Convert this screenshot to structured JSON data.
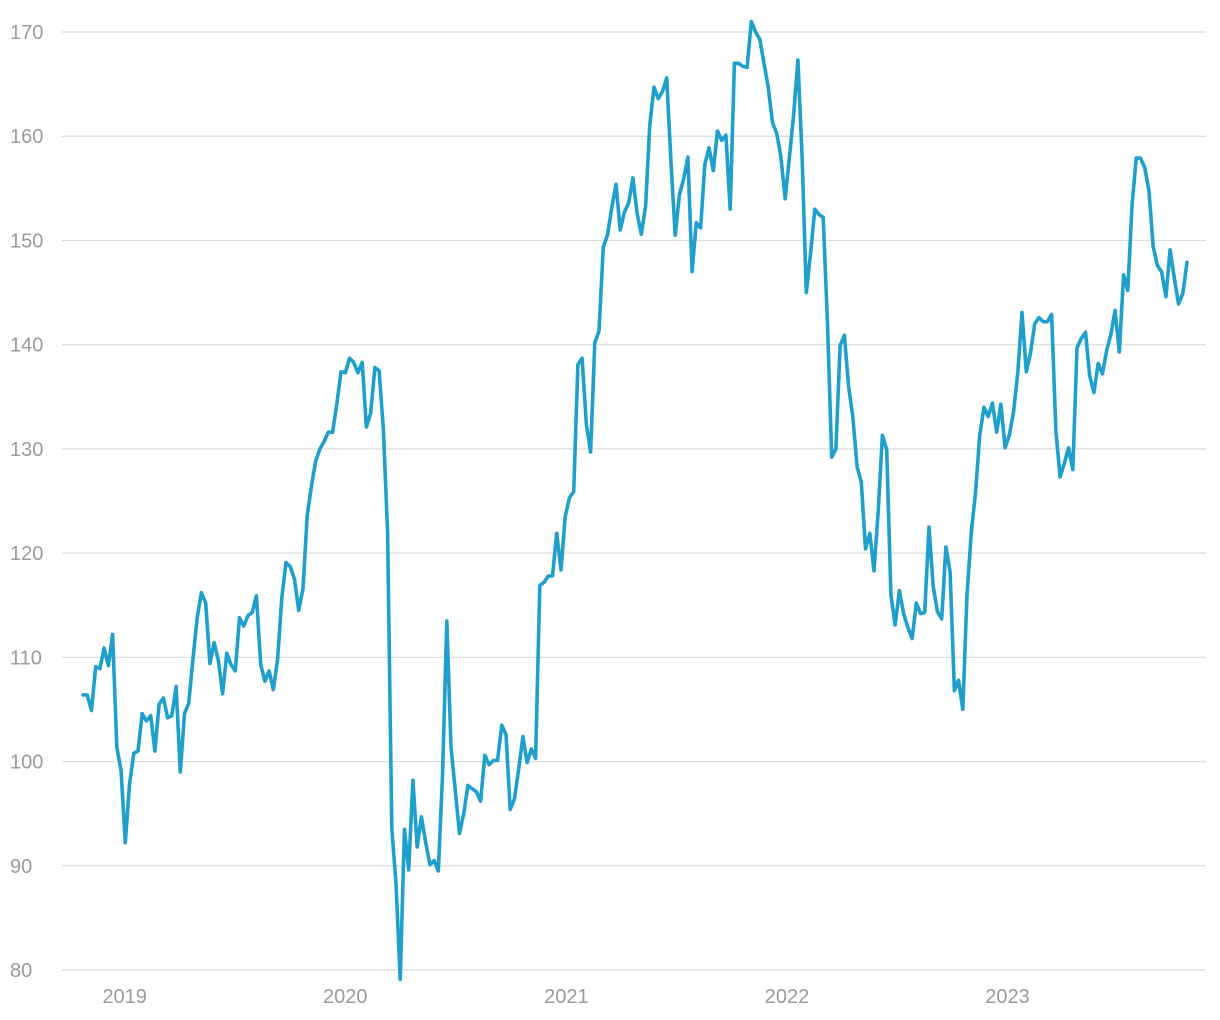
{
  "chart_data": {
    "type": "line",
    "title": "",
    "xlabel": "",
    "ylabel": "",
    "grid": true,
    "x_domain": [
      "2018-10-24",
      "2023-10-25"
    ],
    "ylim": [
      80,
      170
    ],
    "y_ticks": [
      170,
      160,
      150,
      140,
      130,
      120,
      110,
      100,
      90,
      80
    ],
    "x_ticks": [
      {
        "date": "2019-01-01",
        "label": "2019"
      },
      {
        "date": "2020-01-01",
        "label": "2020"
      },
      {
        "date": "2021-01-01",
        "label": "2021"
      },
      {
        "date": "2022-01-01",
        "label": "2022"
      },
      {
        "date": "2023-01-01",
        "label": "2023"
      }
    ],
    "line_color": "#1f9fcb",
    "grid_color": "#dcdcdc",
    "label_color": "#9a9a9a",
    "series": [
      {
        "points": [
          [
            "2018-10-24",
            106.4
          ],
          [
            "2018-10-31",
            106.4
          ],
          [
            "2018-11-07",
            104.9
          ],
          [
            "2018-11-14",
            109.1
          ],
          [
            "2018-11-21",
            108.9
          ],
          [
            "2018-11-28",
            110.9
          ],
          [
            "2018-12-05",
            109.2
          ],
          [
            "2018-12-12",
            112.2
          ],
          [
            "2018-12-19",
            101.4
          ],
          [
            "2018-12-26",
            99.1
          ],
          [
            "2019-01-02",
            92.2
          ],
          [
            "2019-01-09",
            97.8
          ],
          [
            "2019-01-16",
            100.8
          ],
          [
            "2019-01-23",
            101.0
          ],
          [
            "2019-01-30",
            104.6
          ],
          [
            "2019-02-06",
            103.9
          ],
          [
            "2019-02-13",
            104.4
          ],
          [
            "2019-02-20",
            101.0
          ],
          [
            "2019-02-27",
            105.5
          ],
          [
            "2019-03-06",
            106.1
          ],
          [
            "2019-03-13",
            104.2
          ],
          [
            "2019-03-20",
            104.4
          ],
          [
            "2019-03-27",
            107.2
          ],
          [
            "2019-04-03",
            99.0
          ],
          [
            "2019-04-10",
            104.6
          ],
          [
            "2019-04-17",
            105.6
          ],
          [
            "2019-04-24",
            109.9
          ],
          [
            "2019-05-01",
            113.8
          ],
          [
            "2019-05-08",
            116.2
          ],
          [
            "2019-05-15",
            115.2
          ],
          [
            "2019-05-22",
            109.4
          ],
          [
            "2019-05-29",
            111.4
          ],
          [
            "2019-06-05",
            109.7
          ],
          [
            "2019-06-12",
            106.5
          ],
          [
            "2019-06-19",
            110.4
          ],
          [
            "2019-06-26",
            109.3
          ],
          [
            "2019-07-03",
            108.7
          ],
          [
            "2019-07-10",
            113.8
          ],
          [
            "2019-07-17",
            113.0
          ],
          [
            "2019-07-24",
            114.0
          ],
          [
            "2019-07-31",
            114.3
          ],
          [
            "2019-08-07",
            115.9
          ],
          [
            "2019-08-14",
            109.3
          ],
          [
            "2019-08-21",
            107.7
          ],
          [
            "2019-08-28",
            108.7
          ],
          [
            "2019-09-04",
            106.9
          ],
          [
            "2019-09-11",
            109.8
          ],
          [
            "2019-09-18",
            115.7
          ],
          [
            "2019-09-25",
            119.1
          ],
          [
            "2019-10-02",
            118.7
          ],
          [
            "2019-10-09",
            117.5
          ],
          [
            "2019-10-16",
            114.5
          ],
          [
            "2019-10-23",
            116.6
          ],
          [
            "2019-10-30",
            123.6
          ],
          [
            "2019-11-06",
            126.4
          ],
          [
            "2019-11-13",
            128.8
          ],
          [
            "2019-11-20",
            130.0
          ],
          [
            "2019-11-27",
            130.7
          ],
          [
            "2019-12-04",
            131.6
          ],
          [
            "2019-12-11",
            131.6
          ],
          [
            "2019-12-18",
            134.3
          ],
          [
            "2019-12-25",
            137.4
          ],
          [
            "2020-01-01",
            137.3
          ],
          [
            "2020-01-08",
            138.7
          ],
          [
            "2020-01-15",
            138.3
          ],
          [
            "2020-01-22",
            137.3
          ],
          [
            "2020-01-29",
            138.3
          ],
          [
            "2020-02-05",
            132.1
          ],
          [
            "2020-02-12",
            133.4
          ],
          [
            "2020-02-19",
            137.8
          ],
          [
            "2020-02-26",
            137.5
          ],
          [
            "2020-03-04",
            132.0
          ],
          [
            "2020-03-11",
            122.0
          ],
          [
            "2020-03-18",
            93.6
          ],
          [
            "2020-03-25",
            88.3
          ],
          [
            "2020-04-01",
            79.1
          ],
          [
            "2020-04-08",
            93.5
          ],
          [
            "2020-04-15",
            89.6
          ],
          [
            "2020-04-22",
            98.2
          ],
          [
            "2020-04-29",
            91.8
          ],
          [
            "2020-05-06",
            94.7
          ],
          [
            "2020-05-13",
            92.3
          ],
          [
            "2020-05-20",
            90.1
          ],
          [
            "2020-05-27",
            90.5
          ],
          [
            "2020-06-03",
            89.5
          ],
          [
            "2020-06-10",
            98.6
          ],
          [
            "2020-06-17",
            113.5
          ],
          [
            "2020-06-24",
            101.4
          ],
          [
            "2020-07-01",
            97.3
          ],
          [
            "2020-07-08",
            93.1
          ],
          [
            "2020-07-15",
            95.0
          ],
          [
            "2020-07-22",
            97.7
          ],
          [
            "2020-07-29",
            97.4
          ],
          [
            "2020-08-05",
            97.1
          ],
          [
            "2020-08-12",
            96.2
          ],
          [
            "2020-08-19",
            100.6
          ],
          [
            "2020-08-26",
            99.7
          ],
          [
            "2020-09-02",
            100.1
          ],
          [
            "2020-09-09",
            100.1
          ],
          [
            "2020-09-16",
            103.5
          ],
          [
            "2020-09-23",
            102.6
          ],
          [
            "2020-09-30",
            95.4
          ],
          [
            "2020-10-07",
            96.4
          ],
          [
            "2020-10-14",
            99.3
          ],
          [
            "2020-10-21",
            102.4
          ],
          [
            "2020-10-28",
            99.9
          ],
          [
            "2020-11-04",
            101.2
          ],
          [
            "2020-11-11",
            100.3
          ],
          [
            "2020-11-18",
            116.9
          ],
          [
            "2020-11-25",
            117.2
          ],
          [
            "2020-12-02",
            117.8
          ],
          [
            "2020-12-09",
            117.8
          ],
          [
            "2020-12-16",
            121.9
          ],
          [
            "2020-12-23",
            118.4
          ],
          [
            "2020-12-30",
            123.5
          ],
          [
            "2021-01-06",
            125.3
          ],
          [
            "2021-01-13",
            125.9
          ],
          [
            "2021-01-20",
            138.1
          ],
          [
            "2021-01-27",
            138.7
          ],
          [
            "2021-02-03",
            132.3
          ],
          [
            "2021-02-10",
            129.7
          ],
          [
            "2021-02-17",
            140.2
          ],
          [
            "2021-02-24",
            141.3
          ],
          [
            "2021-03-03",
            149.4
          ],
          [
            "2021-03-10",
            150.5
          ],
          [
            "2021-03-17",
            153.1
          ],
          [
            "2021-03-24",
            155.4
          ],
          [
            "2021-03-31",
            151.0
          ],
          [
            "2021-04-07",
            152.7
          ],
          [
            "2021-04-14",
            153.6
          ],
          [
            "2021-04-21",
            156.0
          ],
          [
            "2021-04-28",
            152.6
          ],
          [
            "2021-05-05",
            150.6
          ],
          [
            "2021-05-12",
            153.3
          ],
          [
            "2021-05-19",
            161.1
          ],
          [
            "2021-05-26",
            164.7
          ],
          [
            "2021-06-02",
            163.6
          ],
          [
            "2021-06-09",
            164.3
          ],
          [
            "2021-06-16",
            165.6
          ],
          [
            "2021-06-23",
            157.5
          ],
          [
            "2021-06-30",
            150.5
          ],
          [
            "2021-07-07",
            154.4
          ],
          [
            "2021-07-14",
            155.9
          ],
          [
            "2021-07-21",
            158.0
          ],
          [
            "2021-07-28",
            147.0
          ],
          [
            "2021-08-04",
            151.7
          ],
          [
            "2021-08-11",
            151.2
          ],
          [
            "2021-08-18",
            157.3
          ],
          [
            "2021-08-25",
            158.9
          ],
          [
            "2021-09-01",
            156.7
          ],
          [
            "2021-09-08",
            160.5
          ],
          [
            "2021-09-15",
            159.6
          ],
          [
            "2021-09-22",
            160.1
          ],
          [
            "2021-09-29",
            153.0
          ],
          [
            "2021-10-06",
            167.0
          ],
          [
            "2021-10-13",
            167.0
          ],
          [
            "2021-10-20",
            166.7
          ],
          [
            "2021-10-27",
            166.6
          ],
          [
            "2021-11-03",
            171.0
          ],
          [
            "2021-11-10",
            170.0
          ],
          [
            "2021-11-17",
            169.3
          ],
          [
            "2021-11-24",
            167.0
          ],
          [
            "2021-12-01",
            164.7
          ],
          [
            "2021-12-08",
            161.3
          ],
          [
            "2021-12-15",
            160.3
          ],
          [
            "2021-12-22",
            158.0
          ],
          [
            "2021-12-29",
            154.0
          ],
          [
            "2022-01-05",
            158.0
          ],
          [
            "2022-01-12",
            162.0
          ],
          [
            "2022-01-19",
            167.3
          ],
          [
            "2022-01-26",
            158.0
          ],
          [
            "2022-02-02",
            145.0
          ],
          [
            "2022-02-09",
            148.7
          ],
          [
            "2022-02-16",
            153.0
          ],
          [
            "2022-02-23",
            152.5
          ],
          [
            "2022-03-02",
            152.2
          ],
          [
            "2022-03-09",
            142.0
          ],
          [
            "2022-03-16",
            129.2
          ],
          [
            "2022-03-23",
            130.0
          ],
          [
            "2022-03-30",
            139.9
          ],
          [
            "2022-04-06",
            140.9
          ],
          [
            "2022-04-13",
            136.0
          ],
          [
            "2022-04-20",
            133.1
          ],
          [
            "2022-04-27",
            128.3
          ],
          [
            "2022-05-04",
            126.8
          ],
          [
            "2022-05-11",
            120.4
          ],
          [
            "2022-05-18",
            121.9
          ],
          [
            "2022-05-25",
            118.3
          ],
          [
            "2022-06-01",
            124.0
          ],
          [
            "2022-06-08",
            131.3
          ],
          [
            "2022-06-15",
            129.9
          ],
          [
            "2022-06-22",
            116.0
          ],
          [
            "2022-06-29",
            113.1
          ],
          [
            "2022-07-06",
            116.4
          ],
          [
            "2022-07-13",
            114.2
          ],
          [
            "2022-07-20",
            112.9
          ],
          [
            "2022-07-27",
            111.8
          ],
          [
            "2022-08-03",
            115.2
          ],
          [
            "2022-08-10",
            114.2
          ],
          [
            "2022-08-17",
            114.3
          ],
          [
            "2022-08-24",
            122.5
          ],
          [
            "2022-08-31",
            116.8
          ],
          [
            "2022-09-07",
            114.4
          ],
          [
            "2022-09-14",
            113.7
          ],
          [
            "2022-09-21",
            120.6
          ],
          [
            "2022-09-28",
            118.2
          ],
          [
            "2022-10-05",
            106.8
          ],
          [
            "2022-10-12",
            107.8
          ],
          [
            "2022-10-19",
            105.0
          ],
          [
            "2022-10-26",
            116.0
          ],
          [
            "2022-11-02",
            122.0
          ],
          [
            "2022-11-09",
            125.8
          ],
          [
            "2022-11-16",
            131.3
          ],
          [
            "2022-11-23",
            134.0
          ],
          [
            "2022-11-30",
            133.1
          ],
          [
            "2022-12-07",
            134.4
          ],
          [
            "2022-12-14",
            131.6
          ],
          [
            "2022-12-21",
            134.3
          ],
          [
            "2022-12-28",
            130.1
          ],
          [
            "2023-01-04",
            131.3
          ],
          [
            "2023-01-11",
            133.6
          ],
          [
            "2023-01-18",
            137.3
          ],
          [
            "2023-01-25",
            143.1
          ],
          [
            "2023-02-01",
            137.4
          ],
          [
            "2023-02-08",
            139.2
          ],
          [
            "2023-02-15",
            142.0
          ],
          [
            "2023-02-22",
            142.6
          ],
          [
            "2023-03-01",
            142.2
          ],
          [
            "2023-03-08",
            142.2
          ],
          [
            "2023-03-15",
            142.9
          ],
          [
            "2023-03-22",
            131.7
          ],
          [
            "2023-03-29",
            127.3
          ],
          [
            "2023-04-05",
            128.6
          ],
          [
            "2023-04-12",
            130.1
          ],
          [
            "2023-04-19",
            128.0
          ],
          [
            "2023-04-26",
            139.7
          ],
          [
            "2023-05-03",
            140.6
          ],
          [
            "2023-05-10",
            141.2
          ],
          [
            "2023-05-17",
            137.0
          ],
          [
            "2023-05-24",
            135.4
          ],
          [
            "2023-05-31",
            138.2
          ],
          [
            "2023-06-07",
            137.2
          ],
          [
            "2023-06-14",
            139.4
          ],
          [
            "2023-06-21",
            141.0
          ],
          [
            "2023-06-28",
            143.3
          ],
          [
            "2023-07-05",
            139.3
          ],
          [
            "2023-07-12",
            146.7
          ],
          [
            "2023-07-19",
            145.2
          ],
          [
            "2023-07-26",
            153.3
          ],
          [
            "2023-08-02",
            157.9
          ],
          [
            "2023-08-09",
            157.9
          ],
          [
            "2023-08-16",
            157.0
          ],
          [
            "2023-08-23",
            154.8
          ],
          [
            "2023-08-30",
            149.4
          ],
          [
            "2023-09-06",
            147.6
          ],
          [
            "2023-09-13",
            147.0
          ],
          [
            "2023-09-20",
            144.6
          ],
          [
            "2023-09-27",
            149.1
          ],
          [
            "2023-10-04",
            146.4
          ],
          [
            "2023-10-11",
            143.9
          ],
          [
            "2023-10-18",
            144.9
          ],
          [
            "2023-10-25",
            147.9
          ]
        ]
      }
    ]
  }
}
